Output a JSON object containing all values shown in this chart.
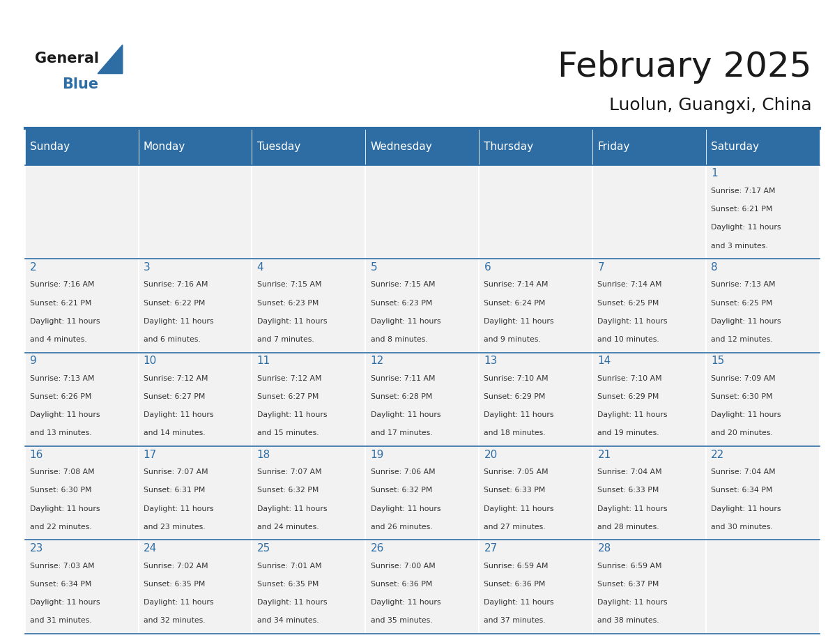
{
  "title": "February 2025",
  "subtitle": "Luolun, Guangxi, China",
  "days_of_week": [
    "Sunday",
    "Monday",
    "Tuesday",
    "Wednesday",
    "Thursday",
    "Friday",
    "Saturday"
  ],
  "header_bg": "#2E6DA4",
  "header_text": "#FFFFFF",
  "cell_bg": "#F2F2F2",
  "border_color": "#2E6DA4",
  "title_color": "#1a1a1a",
  "subtitle_color": "#1a1a1a",
  "cell_text_color": "#333333",
  "day_num_color": "#2E6DA4",
  "calendar_data": [
    [
      null,
      null,
      null,
      null,
      null,
      null,
      {
        "day": 1,
        "sunrise": "7:17 AM",
        "sunset": "6:21 PM",
        "daylight": "11 hours\nand 3 minutes."
      }
    ],
    [
      {
        "day": 2,
        "sunrise": "7:16 AM",
        "sunset": "6:21 PM",
        "daylight": "11 hours\nand 4 minutes."
      },
      {
        "day": 3,
        "sunrise": "7:16 AM",
        "sunset": "6:22 PM",
        "daylight": "11 hours\nand 6 minutes."
      },
      {
        "day": 4,
        "sunrise": "7:15 AM",
        "sunset": "6:23 PM",
        "daylight": "11 hours\nand 7 minutes."
      },
      {
        "day": 5,
        "sunrise": "7:15 AM",
        "sunset": "6:23 PM",
        "daylight": "11 hours\nand 8 minutes."
      },
      {
        "day": 6,
        "sunrise": "7:14 AM",
        "sunset": "6:24 PM",
        "daylight": "11 hours\nand 9 minutes."
      },
      {
        "day": 7,
        "sunrise": "7:14 AM",
        "sunset": "6:25 PM",
        "daylight": "11 hours\nand 10 minutes."
      },
      {
        "day": 8,
        "sunrise": "7:13 AM",
        "sunset": "6:25 PM",
        "daylight": "11 hours\nand 12 minutes."
      }
    ],
    [
      {
        "day": 9,
        "sunrise": "7:13 AM",
        "sunset": "6:26 PM",
        "daylight": "11 hours\nand 13 minutes."
      },
      {
        "day": 10,
        "sunrise": "7:12 AM",
        "sunset": "6:27 PM",
        "daylight": "11 hours\nand 14 minutes."
      },
      {
        "day": 11,
        "sunrise": "7:12 AM",
        "sunset": "6:27 PM",
        "daylight": "11 hours\nand 15 minutes."
      },
      {
        "day": 12,
        "sunrise": "7:11 AM",
        "sunset": "6:28 PM",
        "daylight": "11 hours\nand 17 minutes."
      },
      {
        "day": 13,
        "sunrise": "7:10 AM",
        "sunset": "6:29 PM",
        "daylight": "11 hours\nand 18 minutes."
      },
      {
        "day": 14,
        "sunrise": "7:10 AM",
        "sunset": "6:29 PM",
        "daylight": "11 hours\nand 19 minutes."
      },
      {
        "day": 15,
        "sunrise": "7:09 AM",
        "sunset": "6:30 PM",
        "daylight": "11 hours\nand 20 minutes."
      }
    ],
    [
      {
        "day": 16,
        "sunrise": "7:08 AM",
        "sunset": "6:30 PM",
        "daylight": "11 hours\nand 22 minutes."
      },
      {
        "day": 17,
        "sunrise": "7:07 AM",
        "sunset": "6:31 PM",
        "daylight": "11 hours\nand 23 minutes."
      },
      {
        "day": 18,
        "sunrise": "7:07 AM",
        "sunset": "6:32 PM",
        "daylight": "11 hours\nand 24 minutes."
      },
      {
        "day": 19,
        "sunrise": "7:06 AM",
        "sunset": "6:32 PM",
        "daylight": "11 hours\nand 26 minutes."
      },
      {
        "day": 20,
        "sunrise": "7:05 AM",
        "sunset": "6:33 PM",
        "daylight": "11 hours\nand 27 minutes."
      },
      {
        "day": 21,
        "sunrise": "7:04 AM",
        "sunset": "6:33 PM",
        "daylight": "11 hours\nand 28 minutes."
      },
      {
        "day": 22,
        "sunrise": "7:04 AM",
        "sunset": "6:34 PM",
        "daylight": "11 hours\nand 30 minutes."
      }
    ],
    [
      {
        "day": 23,
        "sunrise": "7:03 AM",
        "sunset": "6:34 PM",
        "daylight": "11 hours\nand 31 minutes."
      },
      {
        "day": 24,
        "sunrise": "7:02 AM",
        "sunset": "6:35 PM",
        "daylight": "11 hours\nand 32 minutes."
      },
      {
        "day": 25,
        "sunrise": "7:01 AM",
        "sunset": "6:35 PM",
        "daylight": "11 hours\nand 34 minutes."
      },
      {
        "day": 26,
        "sunrise": "7:00 AM",
        "sunset": "6:36 PM",
        "daylight": "11 hours\nand 35 minutes."
      },
      {
        "day": 27,
        "sunrise": "6:59 AM",
        "sunset": "6:36 PM",
        "daylight": "11 hours\nand 37 minutes."
      },
      {
        "day": 28,
        "sunrise": "6:59 AM",
        "sunset": "6:37 PM",
        "daylight": "11 hours\nand 38 minutes."
      },
      null
    ]
  ]
}
